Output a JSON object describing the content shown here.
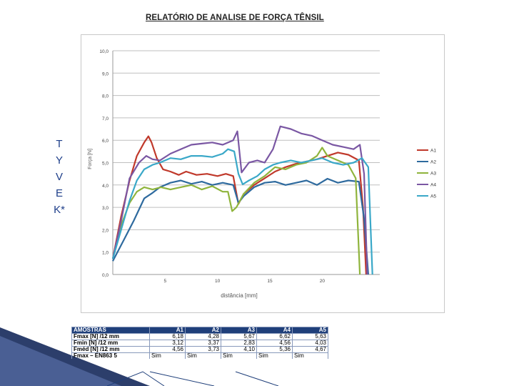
{
  "side_text": [
    "T",
    "Y",
    "V",
    "E",
    "K*"
  ],
  "table": {
    "header": [
      "AMOSTRAS",
      "A1",
      "A2",
      "A3",
      "A4",
      "A5"
    ],
    "rows": [
      {
        "label": "Fmax [N] /12 mm",
        "values": [
          "6,18",
          "4,28",
          "5,67",
          "6,62",
          "5,63"
        ]
      },
      {
        "label": "Fmin [N] /12 mm",
        "values": [
          "3,12",
          "3,37",
          "2,83",
          "4,56",
          "4,03"
        ]
      },
      {
        "label": "Fméd [N] /12 mm",
        "values": [
          "4,56",
          "3,73",
          "4,10",
          "5,36",
          "4,67"
        ]
      },
      {
        "label": "Fmax – EN863 5",
        "values": [
          "Sim",
          "Sim",
          "Sim",
          "Sim",
          "Sim"
        ]
      }
    ]
  },
  "chart_data": {
    "type": "line",
    "title": "RELATÓRIO DE ANALISE DE FORÇA TÊNSIL",
    "xlabel": "distância [mm]",
    "ylabel": "Força [N]",
    "xlim": [
      0,
      25.5
    ],
    "ylim": [
      0,
      10
    ],
    "y_ticks": [
      "0,0",
      "1,0",
      "2,0",
      "3,0",
      "4,0",
      "5,0",
      "6,0",
      "7,0",
      "8,0",
      "9,0",
      "10,0"
    ],
    "x_ticks": [
      {
        "value": 5,
        "label": "5"
      },
      {
        "value": 10,
        "label": "10"
      },
      {
        "value": 15,
        "label": "15"
      },
      {
        "value": 20,
        "label": "20"
      }
    ],
    "grid": "horizontal",
    "legend_position": "right",
    "series": [
      {
        "name": "A1",
        "color": "#c0392b",
        "x": [
          0,
          0.8,
          1.6,
          2.3,
          3.0,
          3.4,
          3.7,
          4.2,
          4.8,
          5.5,
          6.3,
          7.0,
          8.0,
          9.0,
          10.0,
          10.8,
          11.5,
          12.0,
          12.5,
          13.5,
          14.5,
          15.5,
          16.5,
          17.5,
          18.5,
          19.5,
          20.5,
          21.5,
          22.5,
          23.5,
          23.9,
          24.2
        ],
        "y": [
          0.7,
          2.6,
          4.2,
          5.3,
          5.9,
          6.18,
          5.9,
          5.2,
          4.7,
          4.6,
          4.45,
          4.6,
          4.45,
          4.5,
          4.4,
          4.5,
          4.4,
          3.15,
          3.6,
          4.0,
          4.3,
          4.6,
          4.8,
          4.95,
          5.05,
          5.15,
          5.3,
          5.45,
          5.35,
          5.1,
          3.0,
          0
        ]
      },
      {
        "name": "A2",
        "color": "#2e6a9e",
        "x": [
          0,
          1.0,
          2.0,
          3.0,
          3.8,
          4.5,
          5.5,
          6.5,
          7.5,
          8.5,
          9.5,
          10.5,
          11.5,
          12.0,
          12.5,
          13.5,
          14.5,
          15.5,
          16.5,
          17.5,
          18.5,
          19.5,
          20.5,
          21.5,
          22.5,
          23.5,
          24.0,
          24.4
        ],
        "y": [
          0.6,
          1.5,
          2.4,
          3.4,
          3.65,
          3.9,
          4.1,
          4.2,
          4.05,
          4.15,
          4.0,
          4.1,
          4.0,
          3.2,
          3.5,
          3.9,
          4.1,
          4.15,
          4.0,
          4.1,
          4.2,
          4.0,
          4.28,
          4.1,
          4.2,
          4.15,
          2.5,
          0
        ]
      },
      {
        "name": "A3",
        "color": "#8fb43c",
        "x": [
          0,
          0.8,
          1.6,
          2.3,
          3.0,
          3.8,
          4.6,
          5.5,
          6.5,
          7.5,
          8.5,
          9.5,
          10.5,
          11.0,
          11.4,
          11.8,
          12.5,
          13.5,
          14.5,
          15.5,
          16.5,
          17.5,
          18.5,
          19.5,
          20.0,
          20.5,
          21.5,
          22.5,
          23.2,
          23.6
        ],
        "y": [
          0.7,
          2.2,
          3.2,
          3.7,
          3.9,
          3.8,
          3.9,
          3.8,
          3.9,
          4.0,
          3.8,
          3.95,
          3.7,
          3.7,
          2.83,
          3.0,
          3.6,
          4.1,
          4.4,
          4.8,
          4.7,
          4.9,
          5.0,
          5.3,
          5.67,
          5.3,
          5.1,
          4.9,
          4.3,
          0
        ]
      },
      {
        "name": "A4",
        "color": "#7a57a3",
        "x": [
          0,
          0.8,
          1.6,
          2.5,
          3.2,
          3.8,
          4.5,
          5.5,
          6.5,
          7.5,
          8.5,
          9.5,
          10.5,
          11.5,
          11.9,
          12.3,
          13.0,
          13.8,
          14.5,
          15.3,
          16.0,
          17.0,
          18.0,
          19.0,
          20.0,
          21.0,
          22.0,
          23.0,
          23.6,
          24.0,
          24.3
        ],
        "y": [
          0.7,
          2.4,
          4.3,
          5.0,
          5.3,
          5.15,
          5.1,
          5.4,
          5.6,
          5.8,
          5.85,
          5.9,
          5.8,
          6.0,
          6.4,
          4.56,
          5.0,
          5.1,
          5.0,
          5.6,
          6.62,
          6.5,
          6.3,
          6.2,
          6.0,
          5.8,
          5.7,
          5.6,
          5.8,
          4.5,
          0
        ]
      },
      {
        "name": "A5",
        "color": "#3aa8c8",
        "x": [
          0,
          0.8,
          1.6,
          2.3,
          3.0,
          3.8,
          4.5,
          5.5,
          6.5,
          7.5,
          8.5,
          9.5,
          10.5,
          11.0,
          11.6,
          12.0,
          12.4,
          13.0,
          13.8,
          14.5,
          15.3,
          16.0,
          17.0,
          18.0,
          19.0,
          20.0,
          21.0,
          22.0,
          23.0,
          23.8,
          24.4,
          24.8
        ],
        "y": [
          0.7,
          2.0,
          3.3,
          4.2,
          4.7,
          4.9,
          5.0,
          5.2,
          5.15,
          5.3,
          5.3,
          5.25,
          5.4,
          5.6,
          5.5,
          4.5,
          4.03,
          4.2,
          4.4,
          4.7,
          4.9,
          5.0,
          5.1,
          5.0,
          5.1,
          5.2,
          5.0,
          4.9,
          5.0,
          5.2,
          4.8,
          0
        ]
      }
    ]
  }
}
